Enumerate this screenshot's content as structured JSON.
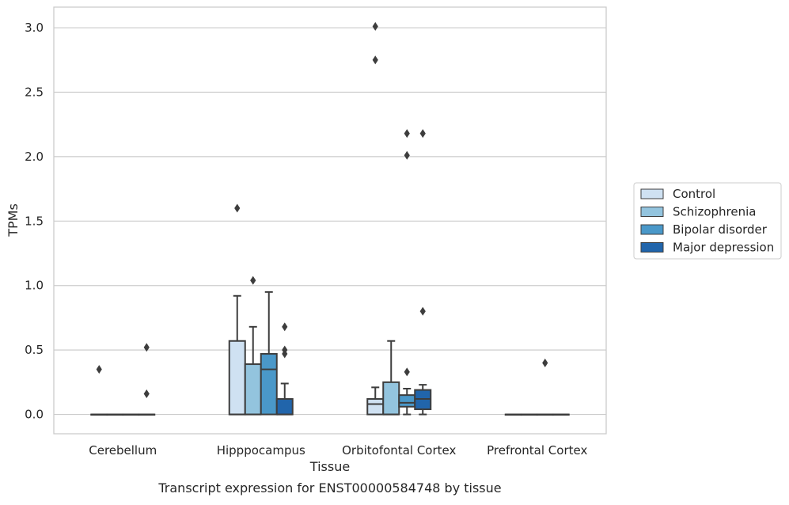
{
  "chart_data": {
    "type": "box",
    "xlabel": "Tissue",
    "ylabel": "TPMs",
    "caption": "Transcript expression for ENST00000584748 by tissue",
    "ylim": [
      -0.15,
      3.16
    ],
    "yticks": [
      "0.0",
      "0.5",
      "1.0",
      "1.5",
      "2.0",
      "2.5",
      "3.0"
    ],
    "grid": "horizontal",
    "legend_position": "right",
    "categories": [
      "Cerebellum",
      "Hipppocampus",
      "Orbitofontal Cortex",
      "Prefrontal Cortex"
    ],
    "series": [
      {
        "name": "Control",
        "color": "#cfe1f2",
        "boxes": [
          {
            "min": 0,
            "q1": 0,
            "median": 0,
            "q3": 0,
            "max": 0,
            "outliers": [
              0.35
            ]
          },
          {
            "min": 0,
            "q1": 0,
            "median": 0,
            "q3": 0.57,
            "max": 0.92,
            "outliers": [
              1.6
            ]
          },
          {
            "min": 0,
            "q1": 0,
            "median": 0.08,
            "q3": 0.12,
            "max": 0.21,
            "outliers": [
              2.75,
              3.01
            ]
          },
          {
            "min": 0,
            "q1": 0,
            "median": 0,
            "q3": 0,
            "max": 0,
            "outliers": []
          }
        ]
      },
      {
        "name": "Schizophrenia",
        "color": "#93c4de",
        "boxes": [
          {
            "min": 0,
            "q1": 0,
            "median": 0,
            "q3": 0,
            "max": 0,
            "outliers": []
          },
          {
            "min": 0,
            "q1": 0,
            "median": 0,
            "q3": 0.39,
            "max": 0.68,
            "outliers": [
              1.04
            ]
          },
          {
            "min": 0,
            "q1": 0,
            "median": 0,
            "q3": 0.25,
            "max": 0.57,
            "outliers": []
          },
          {
            "min": 0,
            "q1": 0,
            "median": 0,
            "q3": 0,
            "max": 0,
            "outliers": []
          }
        ]
      },
      {
        "name": "Bipolar disorder",
        "color": "#4a98c9",
        "boxes": [
          {
            "min": 0,
            "q1": 0,
            "median": 0,
            "q3": 0,
            "max": 0,
            "outliers": []
          },
          {
            "min": 0,
            "q1": 0,
            "median": 0.35,
            "q3": 0.47,
            "max": 0.95,
            "outliers": []
          },
          {
            "min": 0,
            "q1": 0.06,
            "median": 0.09,
            "q3": 0.15,
            "max": 0.2,
            "outliers": [
              0.33,
              2.01,
              2.18
            ]
          },
          {
            "min": 0,
            "q1": 0,
            "median": 0,
            "q3": 0,
            "max": 0,
            "outliers": [
              0.4
            ]
          }
        ]
      },
      {
        "name": "Major depression",
        "color": "#2165ab",
        "boxes": [
          {
            "min": 0,
            "q1": 0,
            "median": 0,
            "q3": 0,
            "max": 0,
            "outliers": [
              0.16,
              0.52
            ]
          },
          {
            "min": 0,
            "q1": 0,
            "median": 0,
            "q3": 0.12,
            "max": 0.24,
            "outliers": [
              0.47,
              0.5,
              0.68
            ]
          },
          {
            "min": 0,
            "q1": 0.04,
            "median": 0.12,
            "q3": 0.19,
            "max": 0.23,
            "outliers": [
              0.8,
              2.18
            ]
          },
          {
            "min": 0,
            "q1": 0,
            "median": 0,
            "q3": 0,
            "max": 0,
            "outliers": []
          }
        ]
      }
    ]
  }
}
